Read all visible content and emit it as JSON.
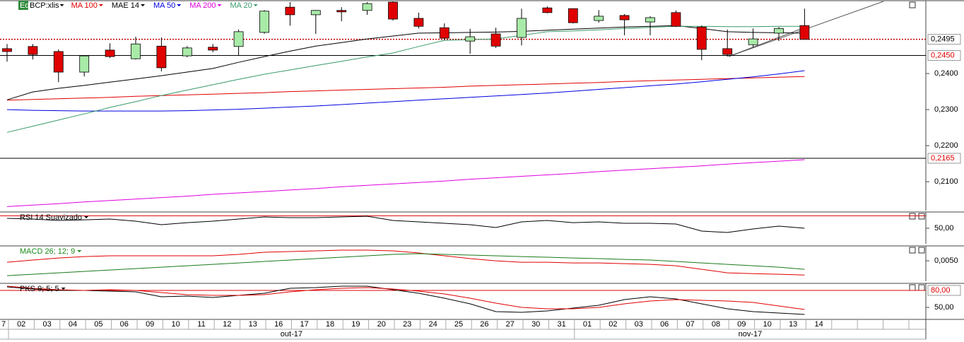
{
  "chart_data": [
    {
      "type": "candlestick",
      "badge": "Eq",
      "symbol": "BCP:xlis",
      "ylim": [
        0.202,
        0.26
      ],
      "yticks": [
        {
          "value": 0.21,
          "label": "0,2100"
        },
        {
          "value": 0.22,
          "label": "0,2200"
        },
        {
          "value": 0.23,
          "label": "0,2300"
        },
        {
          "value": 0.24,
          "label": "0,2400"
        }
      ],
      "hlines": [
        {
          "value": 0.2495,
          "label": "0,2495",
          "color": "#c00000",
          "label_color": "#000000",
          "style": "dotted"
        },
        {
          "value": 0.245,
          "label": "0,2450",
          "color": "#000000",
          "label_color": "#e00000",
          "style": "solid"
        },
        {
          "value": 0.2165,
          "label": "0,2165",
          "color": "#000000",
          "label_color": "#e00000",
          "style": "solid"
        }
      ],
      "up_color": "#a8eaa8",
      "down_color": "#e00000",
      "candles": {
        "open": [
          0.2469,
          0.2475,
          0.2461,
          0.2404,
          0.2465,
          0.2441,
          0.2476,
          0.2449,
          0.2473,
          0.2475,
          0.2514,
          0.2584,
          0.2563,
          0.2575,
          0.2575,
          0.2598,
          0.2553,
          0.2527,
          0.249,
          0.251,
          0.25,
          0.2582,
          0.258,
          0.2547,
          0.2561,
          0.2543,
          0.2569,
          0.2529,
          0.2469,
          0.248,
          0.2512,
          0.2533
        ],
        "high": [
          0.2482,
          0.2482,
          0.2467,
          0.2451,
          0.2484,
          0.2502,
          0.25,
          0.2476,
          0.2482,
          0.2522,
          0.2576,
          0.2598,
          0.2576,
          0.2584,
          0.2598,
          0.26,
          0.2569,
          0.2539,
          0.2524,
          0.2527,
          0.258,
          0.2586,
          0.258,
          0.2576,
          0.2565,
          0.2559,
          0.2575,
          0.2533,
          0.2522,
          0.2525,
          0.2529,
          0.258
        ],
        "low": [
          0.2433,
          0.2439,
          0.2376,
          0.2392,
          0.2443,
          0.2439,
          0.2406,
          0.2445,
          0.2459,
          0.2451,
          0.251,
          0.2533,
          0.251,
          0.2545,
          0.2563,
          0.2547,
          0.2525,
          0.2494,
          0.2455,
          0.2471,
          0.2478,
          0.2567,
          0.2539,
          0.2541,
          0.2506,
          0.2506,
          0.2529,
          0.2437,
          0.2447,
          0.2473,
          0.249,
          0.2494
        ],
        "close": [
          0.2461,
          0.2453,
          0.2404,
          0.2449,
          0.2447,
          0.2482,
          0.2416,
          0.2471,
          0.2465,
          0.2516,
          0.2573,
          0.2563,
          0.2575,
          0.2571,
          0.2594,
          0.2551,
          0.2531,
          0.2498,
          0.2502,
          0.2476,
          0.2553,
          0.2569,
          0.2541,
          0.2559,
          0.2549,
          0.2555,
          0.2531,
          0.2467,
          0.2453,
          0.2496,
          0.2525,
          0.2495
        ]
      },
      "series": [
        {
          "name": "MA 100",
          "color": "#e00000",
          "values": [
            0.2326,
            0.2328,
            0.233,
            0.2332,
            0.2334,
            0.2337,
            0.2339,
            0.2341,
            0.2343,
            0.2345,
            0.2347,
            0.235,
            0.2352,
            0.2354,
            0.2356,
            0.2358,
            0.236,
            0.2362,
            0.2365,
            0.2367,
            0.2369,
            0.2371,
            0.2373,
            0.2375,
            0.2378,
            0.238,
            0.2382,
            0.2384,
            0.2386,
            0.2388,
            0.239,
            0.2392
          ]
        },
        {
          "name": "MAE 14",
          "color": "#000000",
          "values": [
            0.2327,
            0.2349,
            0.2359,
            0.2367,
            0.2376,
            0.2385,
            0.2394,
            0.2404,
            0.2414,
            0.2431,
            0.2447,
            0.2462,
            0.2476,
            0.2486,
            0.2496,
            0.2504,
            0.2512,
            0.2513,
            0.2514,
            0.2515,
            0.2517,
            0.252,
            0.2523,
            0.2526,
            0.2529,
            0.2531,
            0.2533,
            0.2525,
            0.2516,
            0.2514,
            0.2513,
            0.2512
          ]
        },
        {
          "name": "MA 50",
          "color": "#0000e0",
          "values": [
            0.23,
            0.2298,
            0.2297,
            0.2296,
            0.2296,
            0.2296,
            0.2296,
            0.2297,
            0.2299,
            0.2301,
            0.2304,
            0.2307,
            0.231,
            0.2314,
            0.2318,
            0.2322,
            0.2326,
            0.233,
            0.2334,
            0.2338,
            0.2342,
            0.2346,
            0.2351,
            0.2356,
            0.2361,
            0.2366,
            0.2371,
            0.2377,
            0.2384,
            0.2391,
            0.2399,
            0.2408
          ]
        },
        {
          "name": "MA 200",
          "color": "#e000e0",
          "values": [
            0.2031,
            0.2035,
            0.2039,
            0.2044,
            0.2048,
            0.2052,
            0.2056,
            0.206,
            0.2065,
            0.2069,
            0.2073,
            0.2077,
            0.2081,
            0.2086,
            0.209,
            0.2094,
            0.2098,
            0.2102,
            0.2107,
            0.2111,
            0.2115,
            0.2119,
            0.2123,
            0.2128,
            0.2132,
            0.2136,
            0.214,
            0.2144,
            0.2149,
            0.2153,
            0.2157,
            0.2161
          ]
        },
        {
          "name": "MA 20",
          "color": "#3a9a6a",
          "values": [
            0.2237,
            0.2254,
            0.2271,
            0.2288,
            0.2306,
            0.2322,
            0.2339,
            0.2354,
            0.2369,
            0.2384,
            0.2398,
            0.241,
            0.2422,
            0.2434,
            0.2446,
            0.2457,
            0.2475,
            0.2492,
            0.2494,
            0.2496,
            0.2506,
            0.2516,
            0.2518,
            0.2521,
            0.2525,
            0.2528,
            0.2531,
            0.2531,
            0.253,
            0.253,
            0.2531,
            0.2531
          ]
        }
      ]
    },
    {
      "type": "line",
      "title": "RSI 14 Suavizado",
      "title_color": "#000000",
      "ylim": [
        25,
        75
      ],
      "yticks": [
        {
          "value": 50,
          "label": "50,00"
        }
      ],
      "hlines": [
        {
          "value": 70,
          "color": "#e00000",
          "style": "solid"
        }
      ],
      "series": [
        {
          "color": "#000000",
          "values": [
            65.9,
            64.8,
            62.5,
            63.5,
            64.8,
            61.4,
            55.7,
            59.0,
            61.4,
            64.8,
            68.2,
            67.0,
            67.0,
            68.2,
            69.3,
            62.5,
            60.2,
            58.0,
            55.7,
            51.1,
            60.2,
            62.5,
            59.0,
            60.2,
            58.0,
            58.0,
            56.8,
            45.5,
            43.2,
            48.9,
            53.4,
            50.0
          ]
        }
      ]
    },
    {
      "type": "line",
      "title": "MACD 26; 12; 9",
      "title_color": "#1a8a1a",
      "ylim": [
        0.0014,
        0.0075
      ],
      "yticks": [
        {
          "value": 0.005,
          "label": "0,0050"
        }
      ],
      "series": [
        {
          "color": "#e00000",
          "values": [
            0.00475,
            0.00513,
            0.0055,
            0.00575,
            0.00588,
            0.00588,
            0.00588,
            0.00588,
            0.00588,
            0.00613,
            0.0065,
            0.00663,
            0.00675,
            0.00688,
            0.00688,
            0.00675,
            0.00638,
            0.00588,
            0.00538,
            0.005,
            0.00475,
            0.00475,
            0.00463,
            0.00463,
            0.0045,
            0.00438,
            0.00413,
            0.0035,
            0.00288,
            0.00275,
            0.00263,
            0.0025
          ]
        },
        {
          "color": "#1a7a1a",
          "values": [
            0.00238,
            0.00263,
            0.00288,
            0.00313,
            0.00338,
            0.00363,
            0.00388,
            0.00413,
            0.00438,
            0.00463,
            0.00488,
            0.00513,
            0.00538,
            0.00563,
            0.00588,
            0.00613,
            0.00625,
            0.00613,
            0.006,
            0.00588,
            0.00575,
            0.00563,
            0.0055,
            0.00538,
            0.00525,
            0.00513,
            0.00488,
            0.00463,
            0.00438,
            0.00413,
            0.00388,
            0.0035
          ]
        }
      ]
    },
    {
      "type": "line",
      "title": "PKS 9; 5; 5",
      "title_color": "#000000",
      "ylim": [
        28.75,
        91.25
      ],
      "yticks": [
        {
          "value": 50,
          "label": "50,00"
        }
      ],
      "hlines": [
        {
          "value": 80,
          "label": "80,00",
          "color": "#e00000",
          "label_color": "#e00000",
          "style": "solid"
        }
      ],
      "series": [
        {
          "color": "#000000",
          "values": [
            86.25,
            82.5,
            80,
            80,
            78.75,
            77.5,
            68.75,
            70,
            67.5,
            71.25,
            75,
            83.75,
            85,
            87.5,
            87.5,
            81.25,
            75,
            66.25,
            56.25,
            42.5,
            41.25,
            43.75,
            48.75,
            53.75,
            63.75,
            68.75,
            65,
            56.25,
            47.5,
            42.5,
            40,
            37.5
          ]
        },
        {
          "color": "#e00000",
          "values": [
            87.5,
            83.75,
            81.25,
            80,
            81.25,
            80,
            76.25,
            72.5,
            71.25,
            71.25,
            72.5,
            77.5,
            81.25,
            83.75,
            85,
            82.5,
            78.75,
            73.75,
            66.25,
            57.5,
            50,
            47.5,
            47.5,
            50,
            56.25,
            61.25,
            63.75,
            62.5,
            61.25,
            58.75,
            52.5,
            46.25
          ]
        }
      ]
    }
  ],
  "x_axis": {
    "lead_label": "7",
    "months": [
      {
        "label": "out-17",
        "days": [
          "02",
          "03",
          "04",
          "05",
          "06",
          "09",
          "10",
          "11",
          "12",
          "13",
          "16",
          "17",
          "18",
          "19",
          "20",
          "23",
          "24",
          "25",
          "26",
          "27",
          "30",
          "31"
        ]
      },
      {
        "label": "nov-17",
        "days": [
          "01",
          "02",
          "03",
          "06",
          "07",
          "08",
          "09",
          "10",
          "13",
          "14"
        ]
      }
    ]
  }
}
